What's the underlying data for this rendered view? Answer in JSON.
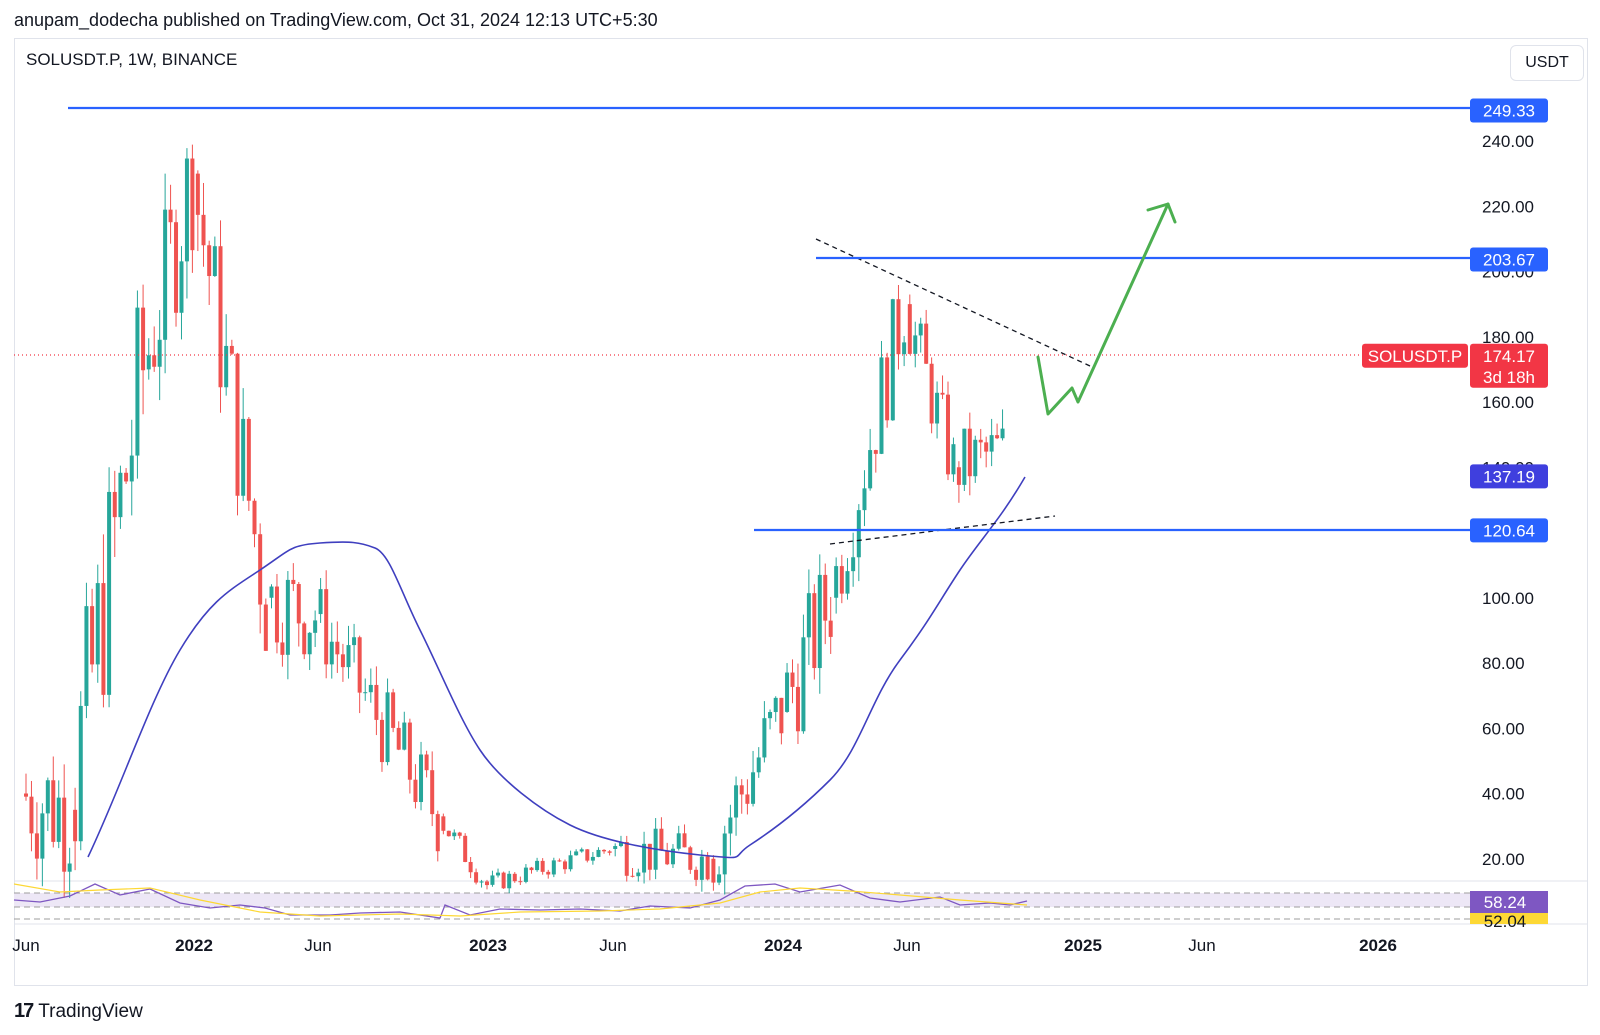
{
  "header": {
    "published_line": "anupam_dodecha published on TradingView.com, Oct 31, 2024 12:13 UTC+5:30",
    "symbol_line": "SOLUSDT.P, 1W, BINANCE",
    "currency": "USDT"
  },
  "footer": {
    "brand": "TradingView",
    "logo": "tradingview-logo-icon"
  },
  "chart_data": {
    "type": "candlestick",
    "symbol": "SOLUSDT.P",
    "interval": "1W",
    "exchange": "BINANCE",
    "colors": {
      "up": "#26a69a",
      "down": "#ef5350",
      "ma": "#3f3fbf",
      "hline": "#2962ff",
      "projection": "#4caf50",
      "price_label": "#f23645",
      "rsi": "#7e57c2"
    },
    "y_axis": {
      "ticks": [
        "20.00",
        "40.00",
        "60.00",
        "80.00",
        "100.00",
        "140.00",
        "160.00",
        "180.00",
        "200.00",
        "220.00",
        "240.00"
      ]
    },
    "x_axis": {
      "ticks": [
        "Jun",
        "2022",
        "Jun",
        "2023",
        "Jun",
        "2024",
        "Jun",
        "2025",
        "Jun",
        "2026"
      ]
    },
    "price_levels": [
      {
        "name": "resistance-top",
        "value": 249.33,
        "label": "249.33"
      },
      {
        "name": "resistance-mid",
        "value": 203.67,
        "label": "203.67"
      },
      {
        "name": "ma-value",
        "value": 137.19,
        "label": "137.19"
      },
      {
        "name": "support",
        "value": 120.64,
        "label": "120.64"
      }
    ],
    "last_price": {
      "symbol_label": "SOLUSDT.P",
      "value": 174.17,
      "label": "174.17",
      "countdown": "3d 18h"
    },
    "rsi": {
      "labels": [
        "58.24",
        "52.04"
      ]
    },
    "candles_summary": [
      {
        "t": "2021-06",
        "o": 40,
        "h": 45,
        "l": 25,
        "c": 35
      },
      {
        "t": "2021-08",
        "o": 35,
        "h": 180,
        "l": 30,
        "c": 170
      },
      {
        "t": "2021-11",
        "o": 170,
        "h": 260,
        "l": 150,
        "c": 230
      },
      {
        "t": "2022-01",
        "o": 230,
        "h": 240,
        "l": 90,
        "c": 100
      },
      {
        "t": "2022-04",
        "o": 100,
        "h": 140,
        "l": 80,
        "c": 95
      },
      {
        "t": "2022-06",
        "o": 95,
        "h": 100,
        "l": 25,
        "c": 33
      },
      {
        "t": "2022-11",
        "o": 33,
        "h": 38,
        "l": 8,
        "c": 12
      },
      {
        "t": "2023-01",
        "o": 12,
        "h": 27,
        "l": 10,
        "c": 23
      },
      {
        "t": "2023-06",
        "o": 23,
        "h": 32,
        "l": 15,
        "c": 20
      },
      {
        "t": "2023-10",
        "o": 20,
        "h": 70,
        "l": 18,
        "c": 65
      },
      {
        "t": "2024-01",
        "o": 65,
        "h": 126,
        "l": 80,
        "c": 100
      },
      {
        "t": "2024-03",
        "o": 100,
        "h": 210,
        "l": 100,
        "c": 190
      },
      {
        "t": "2024-06",
        "o": 190,
        "h": 190,
        "l": 118,
        "c": 140
      },
      {
        "t": "2024-08",
        "o": 140,
        "h": 195,
        "l": 110,
        "c": 145
      },
      {
        "t": "2024-10",
        "o": 145,
        "h": 182,
        "l": 130,
        "c": 174.17
      }
    ]
  }
}
